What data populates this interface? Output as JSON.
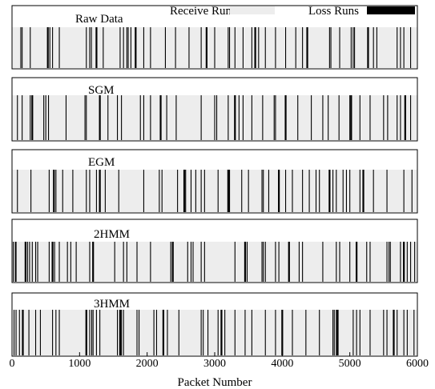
{
  "chart_data": {
    "type": "event-strip",
    "xlabel": "Packet Number",
    "xlim": [
      0,
      6000
    ],
    "xticks": [
      0,
      1000,
      2000,
      3000,
      4000,
      5000,
      6000
    ],
    "legend": [
      {
        "label": "Receive Runs",
        "color": "#ededed"
      },
      {
        "label": "Loss Runs",
        "color": "#000000"
      }
    ],
    "colors": {
      "receive": "#ededed",
      "loss": "#000000",
      "frame": "#000000"
    },
    "panels": [
      {
        "label": "Raw Data",
        "losses": [
          130,
          150,
          270,
          530,
          560,
          600,
          700,
          1100,
          1150,
          1175,
          1250,
          1350,
          1600,
          1650,
          1700,
          1720,
          1760,
          1830,
          1950,
          2050,
          2270,
          2420,
          2620,
          2800,
          2880,
          3000,
          3200,
          3220,
          3300,
          3420,
          3550,
          3600,
          3650,
          3750,
          3900,
          4050,
          4200,
          4300,
          4370,
          4700,
          4720,
          4850,
          5020,
          5050,
          5070,
          5270,
          5350,
          5400,
          5700,
          5750,
          5800,
          5900
        ]
      },
      {
        "label": "SGM",
        "losses": [
          80,
          150,
          270,
          300,
          470,
          500,
          540,
          800,
          1080,
          1100,
          1300,
          1420,
          1560,
          1620,
          1900,
          1950,
          2050,
          2200,
          2290,
          2430,
          2800,
          3000,
          3030,
          3200,
          3300,
          3360,
          3420,
          3550,
          3710,
          3880,
          3900,
          4050,
          4230,
          4430,
          4600,
          4680,
          4840,
          5000,
          5020,
          5150,
          5300,
          5500,
          5560,
          5700,
          5750,
          5820,
          5900
        ]
      },
      {
        "label": "EGM",
        "losses": [
          80,
          280,
          550,
          620,
          650,
          750,
          900,
          1100,
          1150,
          1250,
          1300,
          1380,
          1580,
          1950,
          2180,
          2220,
          2450,
          2550,
          2570,
          2650,
          2720,
          2800,
          2850,
          3050,
          3200,
          3220,
          3400,
          3500,
          3700,
          3720,
          3800,
          3950,
          4050,
          4150,
          4300,
          4400,
          4500,
          4550,
          4700,
          4750,
          4800,
          4900,
          4950,
          5000,
          5150,
          5200,
          5350,
          5550,
          5800,
          5920
        ]
      },
      {
        "label": "2HMM",
        "losses": [
          20,
          50,
          60,
          200,
          230,
          260,
          300,
          350,
          380,
          550,
          600,
          630,
          700,
          820,
          870,
          950,
          1150,
          1200,
          1520,
          1650,
          1700,
          1850,
          2050,
          2350,
          2380,
          2600,
          2650,
          2680,
          2800,
          2850,
          3300,
          3450,
          3480,
          3700,
          3720,
          3750,
          3900,
          3950,
          4100,
          4250,
          4300,
          4600,
          4800,
          4850,
          5000,
          5100,
          5250,
          5300,
          5550,
          5580,
          5600,
          5750,
          5800,
          5850,
          5900,
          5960
        ]
      },
      {
        "label": "3HMM",
        "losses": [
          30,
          60,
          110,
          160,
          250,
          350,
          420,
          600,
          650,
          700,
          1100,
          1150,
          1180,
          1200,
          1250,
          1300,
          1560,
          1600,
          1620,
          1650,
          1850,
          1880,
          2100,
          2140,
          2240,
          2300,
          2470,
          2800,
          2830,
          2900,
          3050,
          3100,
          3150,
          3300,
          3450,
          3550,
          3750,
          3900,
          4000,
          4150,
          4350,
          4550,
          4750,
          4770,
          4800,
          4820,
          5050,
          5100,
          5150,
          5300,
          5500,
          5550,
          5650,
          5700,
          5800,
          5850,
          5950
        ]
      }
    ]
  }
}
